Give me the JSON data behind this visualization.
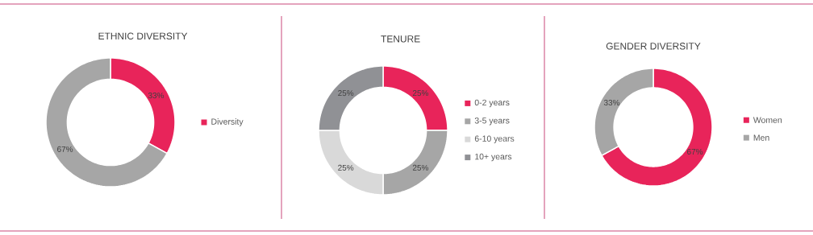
{
  "chart_data": [
    {
      "type": "donut",
      "title": "ETHNIC DIVERSITY",
      "categories": [
        "Diversity",
        null
      ],
      "values": [
        33,
        67
      ],
      "colors": [
        "#e8245a",
        "#a6a6a6"
      ],
      "value_labels": [
        "33%",
        "67%"
      ],
      "legend": "right"
    },
    {
      "type": "donut",
      "title": "TENURE",
      "categories": [
        "0-2 years",
        "3-5 years",
        "6-10 years",
        "10+ years"
      ],
      "values": [
        25,
        25,
        25,
        25
      ],
      "colors": [
        "#e8245a",
        "#a6a6a6",
        "#d9d9d9",
        "#909195"
      ],
      "value_labels": [
        "25%",
        "25%",
        "25%",
        "25%"
      ],
      "legend": "right"
    },
    {
      "type": "donut",
      "title": "GENDER DIVERSITY",
      "categories": [
        "Women",
        "Men"
      ],
      "values": [
        67,
        33
      ],
      "colors": [
        "#e8245a",
        "#a6a6a6"
      ],
      "value_labels": [
        "67%",
        "33%"
      ],
      "legend": "right"
    }
  ]
}
